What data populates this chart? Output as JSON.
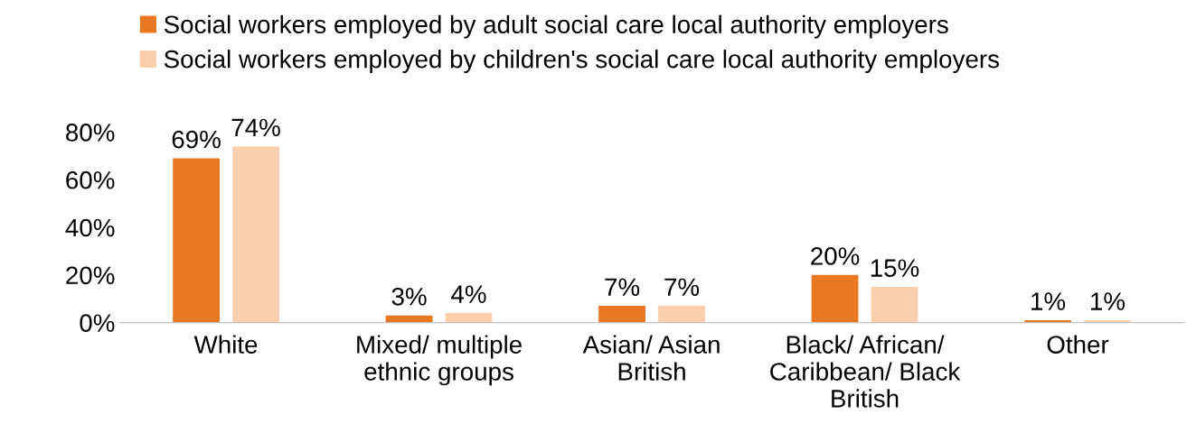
{
  "chart_data": {
    "type": "bar",
    "categories": [
      "White",
      "Mixed/ multiple\nethnic groups",
      "Asian/ Asian\nBritish",
      "Black/ African/\nCaribbean/ Black\nBritish",
      "Other"
    ],
    "series": [
      {
        "name": "Social workers employed by adult social care local authority employers",
        "color": "#e87722",
        "values": [
          69,
          3,
          7,
          20,
          1
        ],
        "value_labels": [
          "69%",
          "3%",
          "7%",
          "20%",
          "1%"
        ]
      },
      {
        "name": "Social workers employed by children's social care local authority employers",
        "color": "#f9cfae",
        "values": [
          74,
          4,
          7,
          15,
          1
        ],
        "value_labels": [
          "74%",
          "4%",
          "7%",
          "15%",
          "1%"
        ]
      }
    ],
    "ylim": [
      0,
      80
    ],
    "yticks": [
      {
        "value": 0,
        "label": "0%"
      },
      {
        "value": 20,
        "label": "20%"
      },
      {
        "value": 40,
        "label": "40%"
      },
      {
        "value": 60,
        "label": "60%"
      },
      {
        "value": 80,
        "label": "80%"
      }
    ],
    "grid": false,
    "legend": "top"
  }
}
